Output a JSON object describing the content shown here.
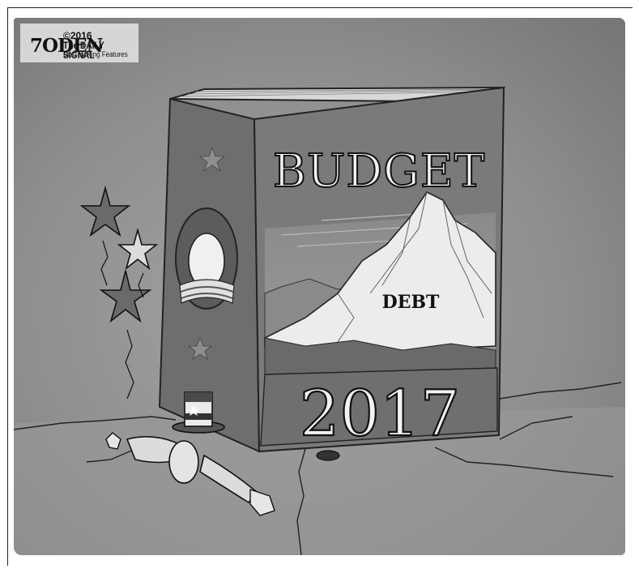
{
  "cartoon": {
    "signature": "7ODEN",
    "credit_line_1": "©2016",
    "credit_line_2": "The DAILY SIGNAL",
    "credit_line_3": "Dist. by King Features"
  },
  "book": {
    "title": "BUDGET",
    "mountain_label": "DEBT",
    "year": "2017"
  },
  "colors": {
    "background": "#8d8d8d",
    "book_front": "#7a7a7a",
    "book_spine": "#6e6e6e",
    "snow": "#ececec",
    "lettering": "#f2f2f2"
  },
  "icons": [
    "star-icon",
    "campaign-logo-icon",
    "uncle-sam-hat-icon"
  ]
}
